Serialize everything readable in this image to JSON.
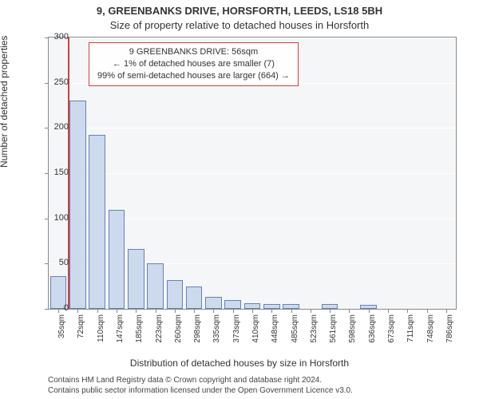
{
  "title": "9, GREENBANKS DRIVE, HORSFORTH, LEEDS, LS18 5BH",
  "subtitle": "Size of property relative to detached houses in Horsforth",
  "ylabel": "Number of detached properties",
  "xlabel": "Distribution of detached houses by size in Horsforth",
  "footnote1": "Contains HM Land Registry data © Crown copyright and database right 2024.",
  "footnote2": "Contains public sector information licensed under the Open Government Licence v3.0.",
  "annotation": {
    "line1": "9 GREENBANKS DRIVE: 56sqm",
    "line2": "← 1% of detached houses are smaller (7)",
    "line3": "99% of semi-detached houses are larger (664) →"
  },
  "chart": {
    "type": "histogram",
    "background_color": "#f5f6f7",
    "plot_border_color": "#888888",
    "grid_color": "#ffffff",
    "bar_fill": "#cdd9ed",
    "bar_stroke": "#6383b6",
    "marker_color": "#d04040",
    "marker_x_sqm": 56,
    "ylim": [
      0,
      300
    ],
    "ytick_step": 50,
    "yticks": [
      0,
      50,
      100,
      150,
      200,
      250,
      300
    ],
    "x_range_sqm": [
      20,
      800
    ],
    "xticks_sqm": [
      35,
      72,
      110,
      147,
      185,
      223,
      260,
      298,
      335,
      373,
      410,
      448,
      485,
      523,
      561,
      598,
      636,
      673,
      711,
      748,
      786
    ],
    "xtick_suffix": "sqm",
    "n_bars": 21,
    "bar_values": [
      36,
      230,
      192,
      109,
      66,
      50,
      32,
      25,
      13,
      10,
      6,
      5,
      5,
      0,
      5,
      0,
      4,
      0,
      0,
      0,
      0
    ],
    "bar_width_rel": 0.85,
    "tick_fontsize": 10,
    "label_fontsize": 12,
    "title_fontsize": 13
  }
}
